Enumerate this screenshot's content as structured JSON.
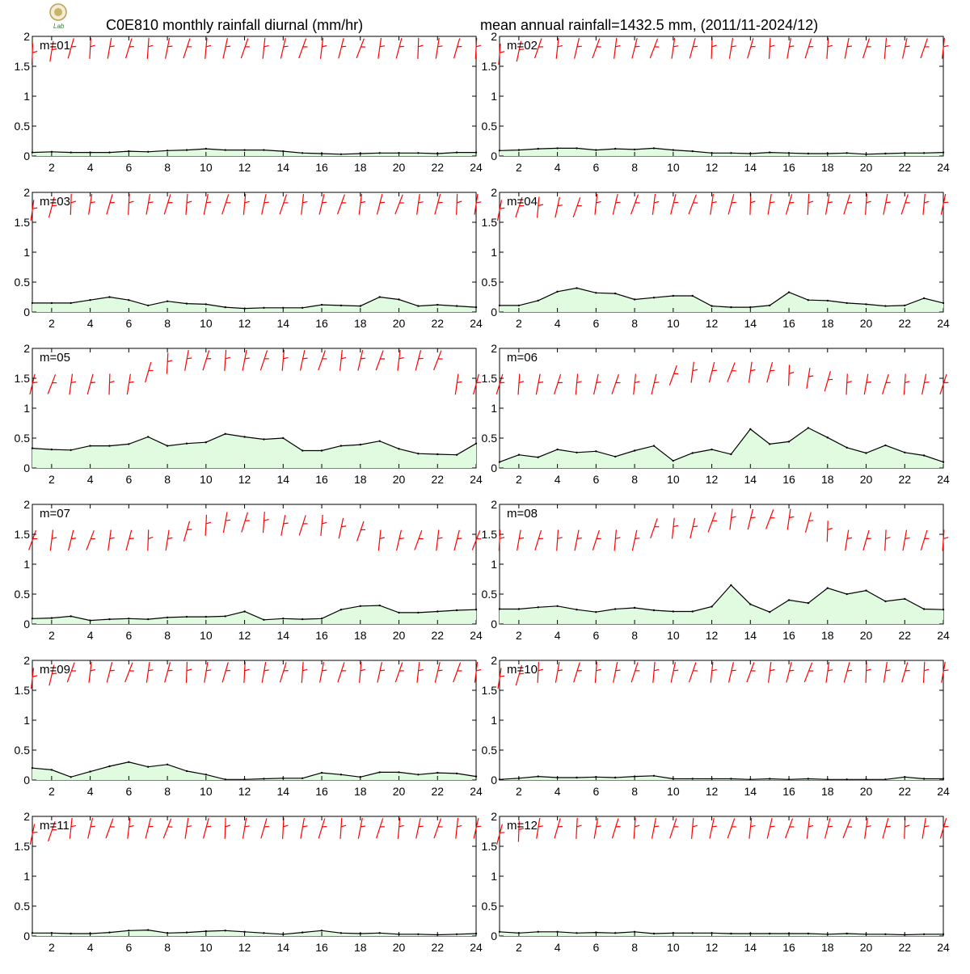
{
  "title_left": "C0E810 monthly rainfall diurnal (mm/hr)",
  "title_right": "mean annual rainfall=1432.5 mm, (2011/11-2024/12)",
  "logo": {
    "icon": "lab-logo",
    "text": "Lab"
  },
  "colors": {
    "area_fill": "#e0fbe0",
    "line": "#000000",
    "barb": "#ff0000",
    "axis": "#000000"
  },
  "chart_data": {
    "type": "area",
    "x": [
      1,
      2,
      3,
      4,
      5,
      6,
      7,
      8,
      9,
      10,
      11,
      12,
      13,
      14,
      15,
      16,
      17,
      18,
      19,
      20,
      21,
      22,
      23,
      24
    ],
    "xlim": [
      1,
      24
    ],
    "ylim": [
      0,
      2
    ],
    "xticks": [
      "2",
      "4",
      "6",
      "8",
      "10",
      "12",
      "14",
      "16",
      "18",
      "20",
      "22",
      "24"
    ],
    "yticks": [
      "0",
      "0.5",
      "1",
      "1.5",
      "2"
    ],
    "xticks_values": [
      2,
      4,
      6,
      8,
      10,
      12,
      14,
      16,
      18,
      20,
      22,
      24
    ],
    "yticks_values": [
      0,
      0.5,
      1,
      1.5,
      2
    ],
    "panels": [
      {
        "label": "m=01",
        "values": [
          0.06,
          0.07,
          0.06,
          0.06,
          0.06,
          0.08,
          0.07,
          0.09,
          0.1,
          0.12,
          0.1,
          0.1,
          0.1,
          0.08,
          0.05,
          0.04,
          0.03,
          0.04,
          0.05,
          0.05,
          0.05,
          0.04,
          0.06,
          0.06
        ],
        "barb_y": [
          1.7,
          1.75,
          1.8,
          1.8,
          1.8,
          1.8,
          1.8,
          1.8,
          1.8,
          1.8,
          1.8,
          1.8,
          1.8,
          1.8,
          1.8,
          1.8,
          1.8,
          1.8,
          1.8,
          1.8,
          1.8,
          1.8,
          1.8,
          1.8
        ]
      },
      {
        "label": "m=02",
        "values": [
          0.09,
          0.1,
          0.12,
          0.13,
          0.13,
          0.1,
          0.12,
          0.11,
          0.13,
          0.1,
          0.08,
          0.05,
          0.05,
          0.04,
          0.06,
          0.05,
          0.04,
          0.04,
          0.05,
          0.03,
          0.04,
          0.05,
          0.05,
          0.06
        ],
        "barb_y": [
          1.7,
          1.75,
          1.8,
          1.8,
          1.8,
          1.8,
          1.8,
          1.8,
          1.8,
          1.8,
          1.8,
          1.8,
          1.8,
          1.8,
          1.8,
          1.8,
          1.8,
          1.8,
          1.8,
          1.8,
          1.8,
          1.8,
          1.8,
          1.8
        ]
      },
      {
        "label": "m=03",
        "values": [
          0.15,
          0.15,
          0.15,
          0.2,
          0.25,
          0.2,
          0.11,
          0.18,
          0.14,
          0.13,
          0.08,
          0.06,
          0.07,
          0.07,
          0.07,
          0.12,
          0.11,
          0.1,
          0.25,
          0.21,
          0.1,
          0.12,
          0.1,
          0.08
        ],
        "barb_y": [
          1.7,
          1.75,
          1.8,
          1.8,
          1.8,
          1.8,
          1.8,
          1.8,
          1.8,
          1.8,
          1.8,
          1.8,
          1.8,
          1.8,
          1.8,
          1.8,
          1.8,
          1.8,
          1.8,
          1.8,
          1.8,
          1.8,
          1.8,
          1.8
        ]
      },
      {
        "label": "m=04",
        "values": [
          0.11,
          0.11,
          0.19,
          0.34,
          0.4,
          0.32,
          0.31,
          0.21,
          0.24,
          0.27,
          0.27,
          0.1,
          0.08,
          0.08,
          0.11,
          0.33,
          0.2,
          0.19,
          0.15,
          0.13,
          0.1,
          0.11,
          0.23,
          0.15
        ],
        "barb_y": [
          1.7,
          1.75,
          1.75,
          1.75,
          1.75,
          1.8,
          1.8,
          1.8,
          1.8,
          1.8,
          1.8,
          1.8,
          1.8,
          1.8,
          1.8,
          1.8,
          1.8,
          1.8,
          1.8,
          1.8,
          1.8,
          1.8,
          1.8,
          1.8
        ]
      },
      {
        "label": "m=05",
        "values": [
          0.33,
          0.31,
          0.3,
          0.37,
          0.37,
          0.4,
          0.52,
          0.37,
          0.41,
          0.43,
          0.57,
          0.52,
          0.48,
          0.5,
          0.29,
          0.29,
          0.37,
          0.39,
          0.45,
          0.32,
          0.24,
          0.23,
          0.22,
          0.41
        ],
        "barb_y": [
          1.4,
          1.4,
          1.4,
          1.4,
          1.4,
          1.4,
          1.6,
          1.75,
          1.8,
          1.8,
          1.8,
          1.8,
          1.8,
          1.8,
          1.8,
          1.8,
          1.8,
          1.8,
          1.8,
          1.8,
          1.8,
          1.8,
          1.4,
          1.4
        ]
      },
      {
        "label": "m=06",
        "values": [
          0.1,
          0.22,
          0.18,
          0.31,
          0.26,
          0.28,
          0.19,
          0.29,
          0.37,
          0.12,
          0.25,
          0.31,
          0.23,
          0.65,
          0.4,
          0.44,
          0.67,
          0.51,
          0.34,
          0.25,
          0.38,
          0.26,
          0.21,
          0.1
        ],
        "barb_y": [
          1.4,
          1.4,
          1.4,
          1.4,
          1.4,
          1.4,
          1.4,
          1.4,
          1.4,
          1.55,
          1.6,
          1.6,
          1.6,
          1.6,
          1.6,
          1.55,
          1.5,
          1.45,
          1.4,
          1.4,
          1.4,
          1.4,
          1.4,
          1.4
        ]
      },
      {
        "label": "m=07",
        "values": [
          0.09,
          0.1,
          0.13,
          0.06,
          0.08,
          0.09,
          0.08,
          0.11,
          0.12,
          0.12,
          0.13,
          0.21,
          0.07,
          0.09,
          0.08,
          0.09,
          0.24,
          0.3,
          0.31,
          0.19,
          0.19,
          0.21,
          0.23,
          0.24
        ],
        "barb_y": [
          1.4,
          1.4,
          1.4,
          1.4,
          1.4,
          1.4,
          1.4,
          1.4,
          1.55,
          1.65,
          1.7,
          1.7,
          1.7,
          1.65,
          1.65,
          1.65,
          1.6,
          1.55,
          1.4,
          1.4,
          1.4,
          1.4,
          1.4,
          1.4
        ]
      },
      {
        "label": "m=08",
        "values": [
          0.25,
          0.25,
          0.28,
          0.3,
          0.24,
          0.2,
          0.25,
          0.27,
          0.23,
          0.21,
          0.21,
          0.29,
          0.65,
          0.33,
          0.2,
          0.4,
          0.35,
          0.6,
          0.5,
          0.56,
          0.38,
          0.42,
          0.25,
          0.24
        ],
        "barb_y": [
          1.4,
          1.4,
          1.4,
          1.4,
          1.4,
          1.4,
          1.4,
          1.4,
          1.6,
          1.6,
          1.6,
          1.7,
          1.75,
          1.75,
          1.75,
          1.75,
          1.7,
          1.55,
          1.4,
          1.4,
          1.4,
          1.4,
          1.4,
          1.4
        ]
      },
      {
        "label": "m=09",
        "values": [
          0.2,
          0.17,
          0.05,
          0.14,
          0.23,
          0.3,
          0.22,
          0.26,
          0.15,
          0.09,
          0.01,
          0.01,
          0.02,
          0.03,
          0.03,
          0.12,
          0.09,
          0.05,
          0.13,
          0.13,
          0.09,
          0.12,
          0.11,
          0.06
        ],
        "barb_y": [
          1.7,
          1.75,
          1.8,
          1.8,
          1.8,
          1.8,
          1.8,
          1.8,
          1.8,
          1.8,
          1.8,
          1.8,
          1.8,
          1.8,
          1.8,
          1.8,
          1.8,
          1.8,
          1.8,
          1.8,
          1.8,
          1.8,
          1.8,
          1.8
        ]
      },
      {
        "label": "m=10",
        "values": [
          0.01,
          0.03,
          0.06,
          0.04,
          0.04,
          0.05,
          0.04,
          0.06,
          0.07,
          0.02,
          0.02,
          0.02,
          0.02,
          0.01,
          0.02,
          0.01,
          0.02,
          0.01,
          0.01,
          0.01,
          0.01,
          0.05,
          0.02,
          0.02
        ],
        "barb_y": [
          1.7,
          1.75,
          1.8,
          1.8,
          1.8,
          1.8,
          1.8,
          1.8,
          1.8,
          1.8,
          1.8,
          1.8,
          1.8,
          1.8,
          1.8,
          1.8,
          1.8,
          1.8,
          1.8,
          1.8,
          1.8,
          1.8,
          1.8,
          1.8
        ]
      },
      {
        "label": "m=11",
        "values": [
          0.05,
          0.05,
          0.04,
          0.04,
          0.06,
          0.09,
          0.1,
          0.05,
          0.06,
          0.08,
          0.09,
          0.07,
          0.05,
          0.03,
          0.06,
          0.09,
          0.05,
          0.04,
          0.05,
          0.03,
          0.03,
          0.02,
          0.03,
          0.04
        ],
        "barb_y": [
          1.7,
          1.75,
          1.8,
          1.8,
          1.8,
          1.8,
          1.8,
          1.8,
          1.8,
          1.8,
          1.8,
          1.8,
          1.8,
          1.8,
          1.8,
          1.8,
          1.8,
          1.8,
          1.8,
          1.8,
          1.8,
          1.8,
          1.8,
          1.8
        ]
      },
      {
        "label": "m=12",
        "values": [
          0.07,
          0.05,
          0.07,
          0.07,
          0.05,
          0.06,
          0.05,
          0.07,
          0.04,
          0.05,
          0.05,
          0.05,
          0.04,
          0.04,
          0.04,
          0.04,
          0.04,
          0.03,
          0.04,
          0.03,
          0.03,
          0.02,
          0.03,
          0.03
        ],
        "barb_y": [
          1.7,
          1.75,
          1.8,
          1.8,
          1.8,
          1.8,
          1.8,
          1.8,
          1.8,
          1.8,
          1.8,
          1.8,
          1.8,
          1.8,
          1.8,
          1.8,
          1.8,
          1.8,
          1.8,
          1.8,
          1.8,
          1.8,
          1.8,
          1.8
        ]
      }
    ]
  }
}
